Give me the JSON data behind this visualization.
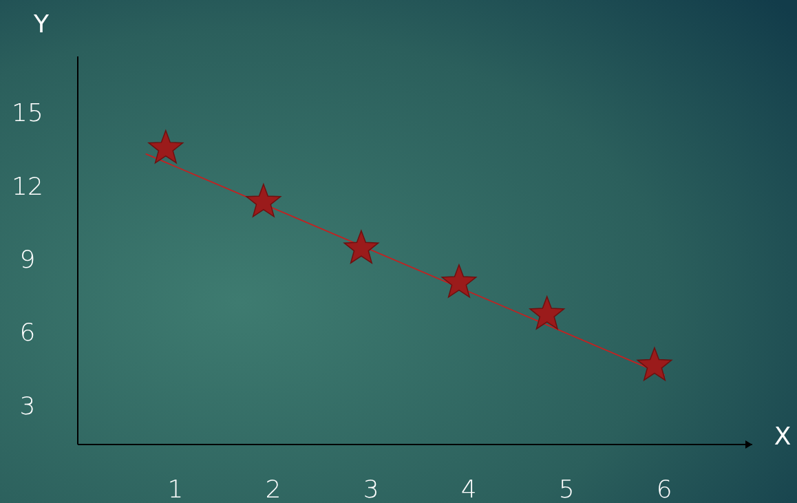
{
  "chart_data": {
    "type": "scatter",
    "xlabel": "X",
    "ylabel": "Y",
    "xlim": [
      0,
      6.9
    ],
    "ylim": [
      1.4,
      17.3
    ],
    "xticks": [
      1,
      2,
      3,
      4,
      5,
      6
    ],
    "yticks": [
      3,
      6,
      9,
      12,
      15
    ],
    "grid": false,
    "series": [
      {
        "color": "#9b1b1b",
        "marker": "star",
        "x": [
          0.9,
          1.9,
          2.9,
          3.9,
          4.8,
          5.9
        ],
        "values": [
          13.6,
          11.4,
          9.5,
          8.1,
          6.8,
          4.7
        ]
      },
      {
        "type": "line",
        "color": "#c62020",
        "marker": "none",
        "line_style": "solid",
        "x": [
          0.7,
          6.0
        ],
        "values": [
          13.3,
          4.25
        ]
      }
    ]
  }
}
